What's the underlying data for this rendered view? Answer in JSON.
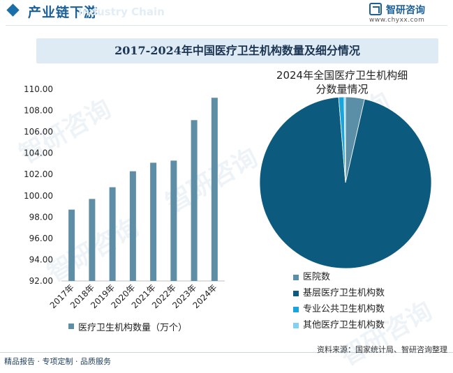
{
  "header": {
    "title": "产业链下游",
    "bg_text": "Industry Chain",
    "logo_name": "智研咨询",
    "logo_url": "www.chyxx.com"
  },
  "chart_title": "2017-2024年中国医疗卫生机构数量及细分情况",
  "footer": {
    "left": "精品报告 · 专项定制 · 品质服务",
    "right": "资料来源：国家统计局、智研咨询整理"
  },
  "watermarks": [
    "智研咨询",
    "智研咨询",
    "智研咨询",
    "智研咨询",
    "智研咨询",
    "智研咨询"
  ],
  "colors": {
    "bar": "#5e8ea5",
    "pie_hospital": "#5b8fa8",
    "pie_grassroots": "#0c5b7e",
    "pie_public": "#19a4dc",
    "pie_other": "#7fd2f0"
  },
  "chart_data": [
    {
      "type": "bar",
      "categories": [
        "2017年",
        "2018年",
        "2019年",
        "2020年",
        "2021年",
        "2022年",
        "2023年",
        "2024年"
      ],
      "series": [
        {
          "name": "医疗卫生机构数量（万个）",
          "values": [
            98.7,
            99.7,
            100.8,
            102.3,
            103.1,
            103.3,
            107.1,
            109.2
          ]
        }
      ],
      "yticks": [
        "92.00",
        "94.00",
        "96.00",
        "98.00",
        "100.00",
        "102.00",
        "104.00",
        "106.00",
        "108.00",
        "110.00"
      ],
      "ylim": [
        92,
        110
      ],
      "grid": false,
      "legend": "bottom-left"
    },
    {
      "type": "pie",
      "title": "2024年全国医疗卫生机构细分数量情况",
      "title_lines": [
        "2024年全国医疗卫生机构细",
        "分数量情况"
      ],
      "labels": [
        "医院数",
        "基层医疗卫生机构数",
        "专业公共卫生机构数",
        "其他医疗卫生机构数"
      ],
      "values": [
        3.9,
        103.9,
        1.1,
        0.3
      ],
      "legend": "bottom"
    }
  ]
}
